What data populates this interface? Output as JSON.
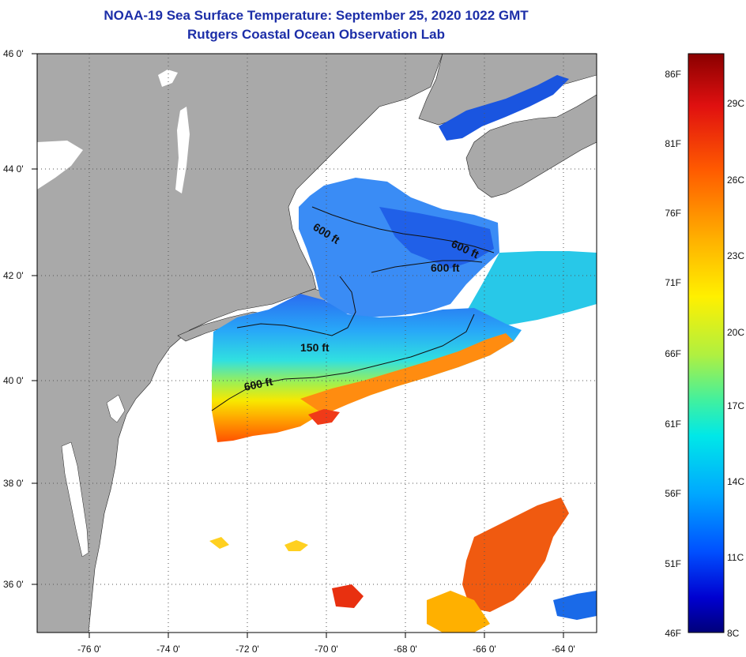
{
  "title": {
    "line1": "NOAA-19 Sea Surface Temperature:  September 25, 2020 1022 GMT",
    "line2": "Rutgers Coastal Ocean Observation Lab"
  },
  "map": {
    "lat_labels": [
      "46 0'",
      "44 0'",
      "42 0'",
      "40 0'",
      "38 0'",
      "36 0'"
    ],
    "lon_labels": [
      "-76 0'",
      "-74 0'",
      "-72 0'",
      "-70 0'",
      "-68 0'",
      "-66 0'",
      "-64 0'"
    ],
    "isobaths": [
      "600 ft",
      "600 ft",
      "600 ft",
      "150 ft",
      "600 ft"
    ],
    "colors": {
      "land": "#a9a9a9",
      "no_data": "#ffffff",
      "frame": "#000000"
    }
  },
  "colorbar": {
    "f_labels": [
      "86F",
      "81F",
      "76F",
      "71F",
      "66F",
      "61F",
      "56F",
      "51F",
      "46F"
    ],
    "c_labels": [
      "29C",
      "26C",
      "23C",
      "20C",
      "17C",
      "14C",
      "11C",
      "8C"
    ],
    "gradient": [
      "#00007a",
      "#0000d0",
      "#0050ff",
      "#00a8ff",
      "#00e8e8",
      "#40f0a0",
      "#b0f040",
      "#fff000",
      "#ffb000",
      "#ff6000",
      "#e81000",
      "#8a0000"
    ]
  }
}
